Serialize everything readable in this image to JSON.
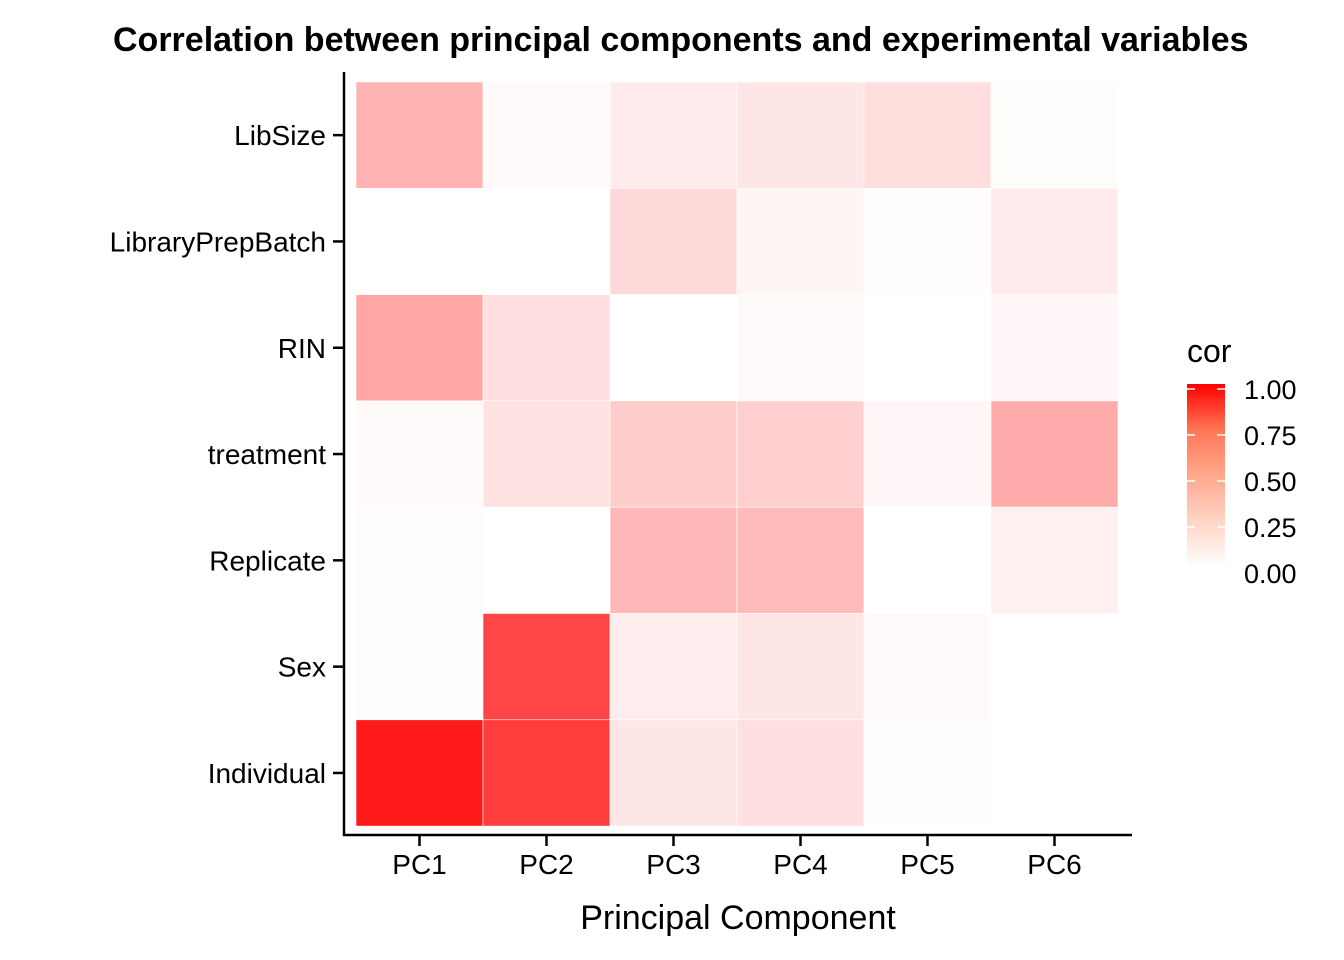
{
  "chart_data": {
    "type": "heatmap",
    "title": "Correlation between principal components and experimental variables",
    "xlabel": "Principal Component",
    "ylabel": "",
    "x_categories": [
      "PC1",
      "PC2",
      "PC3",
      "PC4",
      "PC5",
      "PC6"
    ],
    "y_categories": [
      "LibSize",
      "LibraryPrepBatch",
      "RIN",
      "treatment",
      "Replicate",
      "Sex",
      "Individual"
    ],
    "values": [
      [
        0.3,
        0.02,
        0.08,
        0.1,
        0.13,
        0.01
      ],
      [
        0.0,
        0.0,
        0.15,
        0.04,
        0.01,
        0.08
      ],
      [
        0.35,
        0.12,
        0.0,
        0.02,
        0.0,
        0.03
      ],
      [
        0.02,
        0.11,
        0.2,
        0.19,
        0.03,
        0.33
      ],
      [
        0.01,
        0.0,
        0.28,
        0.27,
        0.0,
        0.06
      ],
      [
        0.01,
        0.73,
        0.07,
        0.1,
        0.02,
        0.0
      ],
      [
        0.9,
        0.76,
        0.1,
        0.12,
        0.01,
        0.0
      ]
    ],
    "color_scale": {
      "low": "#ffffff",
      "high": "#ff0000",
      "limits": [
        0,
        1
      ]
    },
    "legend": {
      "title": "cor",
      "position": "right",
      "breaks": [
        "0.00",
        "0.25",
        "0.50",
        "0.75",
        "1.00"
      ]
    }
  }
}
